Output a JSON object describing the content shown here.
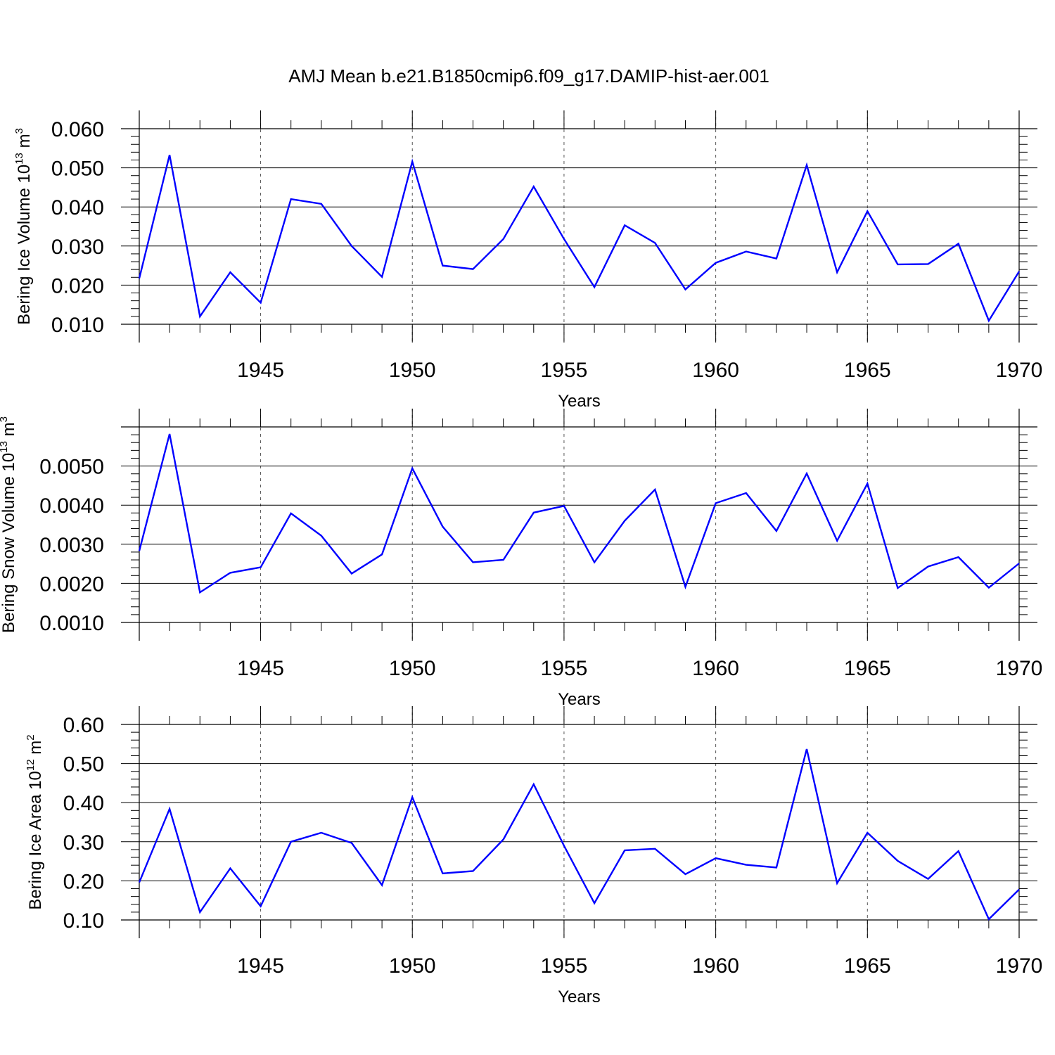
{
  "title": "AMJ Mean b.e21.B1850cmip6.f09_g17.DAMIP-hist-aer.001",
  "colors": {
    "line": "#0000ff",
    "axis": "#000000",
    "grid": "#555555"
  },
  "chart_data": [
    {
      "type": "line",
      "ylabel_main": "Bering Ice Volume 10",
      "ylabel_exp1": "13",
      "ylabel_unit": " m",
      "ylabel_exp2": "3",
      "xlabel": "Years",
      "x": [
        1941,
        1942,
        1943,
        1944,
        1945,
        1946,
        1947,
        1948,
        1949,
        1950,
        1951,
        1952,
        1953,
        1954,
        1955,
        1956,
        1957,
        1958,
        1959,
        1960,
        1961,
        1962,
        1963,
        1964,
        1965,
        1966,
        1967,
        1968,
        1969,
        1970
      ],
      "values": [
        0.0217,
        0.0533,
        0.012,
        0.0233,
        0.0155,
        0.042,
        0.0408,
        0.03,
        0.0221,
        0.0516,
        0.025,
        0.0241,
        0.0318,
        0.0452,
        0.0318,
        0.0195,
        0.0353,
        0.0308,
        0.0189,
        0.0257,
        0.0286,
        0.0268,
        0.0507,
        0.0233,
        0.0389,
        0.0253,
        0.0254,
        0.0306,
        0.0109,
        0.0235
      ],
      "xlim": [
        1941,
        1970
      ],
      "ylim": [
        0.01,
        0.06
      ],
      "yticks": [
        0.01,
        0.02,
        0.03,
        0.04,
        0.05,
        0.06
      ],
      "ytick_labels": [
        "0.010",
        "0.020",
        "0.030",
        "0.040",
        "0.050",
        "0.060"
      ],
      "xticks": [
        1945,
        1950,
        1955,
        1960,
        1965,
        1970
      ],
      "xtick_labels": [
        "1945",
        "1950",
        "1955",
        "1960",
        "1965",
        "1970"
      ],
      "gridlines_x": [
        1945,
        1950,
        1955,
        1960,
        1965
      ]
    },
    {
      "type": "line",
      "ylabel_main": "Bering Snow Volume 10",
      "ylabel_exp1": "13",
      "ylabel_unit": " m",
      "ylabel_exp2": "3",
      "xlabel": "Years",
      "x": [
        1941,
        1942,
        1943,
        1944,
        1945,
        1946,
        1947,
        1948,
        1949,
        1950,
        1951,
        1952,
        1953,
        1954,
        1955,
        1956,
        1957,
        1958,
        1959,
        1960,
        1961,
        1962,
        1963,
        1964,
        1965,
        1966,
        1967,
        1968,
        1969,
        1970
      ],
      "values": [
        0.00283,
        0.00582,
        0.00177,
        0.00227,
        0.00241,
        0.00379,
        0.00322,
        0.00225,
        0.00274,
        0.00494,
        0.00345,
        0.00254,
        0.0026,
        0.00381,
        0.00398,
        0.00254,
        0.0036,
        0.0044,
        0.00191,
        0.00405,
        0.00431,
        0.00334,
        0.00481,
        0.00309,
        0.00455,
        0.00188,
        0.00243,
        0.00267,
        0.00189,
        0.00251
      ],
      "xlim": [
        1941,
        1970
      ],
      "ylim": [
        0.001,
        0.006
      ],
      "yticks": [
        0.001,
        0.002,
        0.003,
        0.004,
        0.005
      ],
      "ytick_labels": [
        "0.0010",
        "0.0020",
        "0.0030",
        "0.0040",
        "0.0050"
      ],
      "xticks": [
        1945,
        1950,
        1955,
        1960,
        1965,
        1970
      ],
      "xtick_labels": [
        "1945",
        "1950",
        "1955",
        "1960",
        "1965",
        "1970"
      ],
      "gridlines_x": [
        1945,
        1950,
        1955,
        1960,
        1965
      ]
    },
    {
      "type": "line",
      "ylabel_main": "Bering Ice Area 10",
      "ylabel_exp1": "12",
      "ylabel_unit": " m",
      "ylabel_exp2": "2",
      "xlabel": "Years",
      "x": [
        1941,
        1942,
        1943,
        1944,
        1945,
        1946,
        1947,
        1948,
        1949,
        1950,
        1951,
        1952,
        1953,
        1954,
        1955,
        1956,
        1957,
        1958,
        1959,
        1960,
        1961,
        1962,
        1963,
        1964,
        1965,
        1966,
        1967,
        1968,
        1969,
        1970
      ],
      "values": [
        0.196,
        0.384,
        0.12,
        0.232,
        0.135,
        0.3,
        0.323,
        0.297,
        0.189,
        0.414,
        0.219,
        0.225,
        0.306,
        0.447,
        0.29,
        0.143,
        0.278,
        0.282,
        0.217,
        0.258,
        0.241,
        0.234,
        0.537,
        0.194,
        0.323,
        0.251,
        0.205,
        0.276,
        0.102,
        0.178
      ],
      "xlim": [
        1941,
        1970
      ],
      "ylim": [
        0.1,
        0.6
      ],
      "yticks": [
        0.1,
        0.2,
        0.3,
        0.4,
        0.5,
        0.6
      ],
      "ytick_labels": [
        "0.10",
        "0.20",
        "0.30",
        "0.40",
        "0.50",
        "0.60"
      ],
      "xticks": [
        1945,
        1950,
        1955,
        1960,
        1965,
        1970
      ],
      "xtick_labels": [
        "1945",
        "1950",
        "1955",
        "1960",
        "1965",
        "1970"
      ],
      "gridlines_x": [
        1945,
        1950,
        1955,
        1960,
        1965
      ]
    }
  ]
}
